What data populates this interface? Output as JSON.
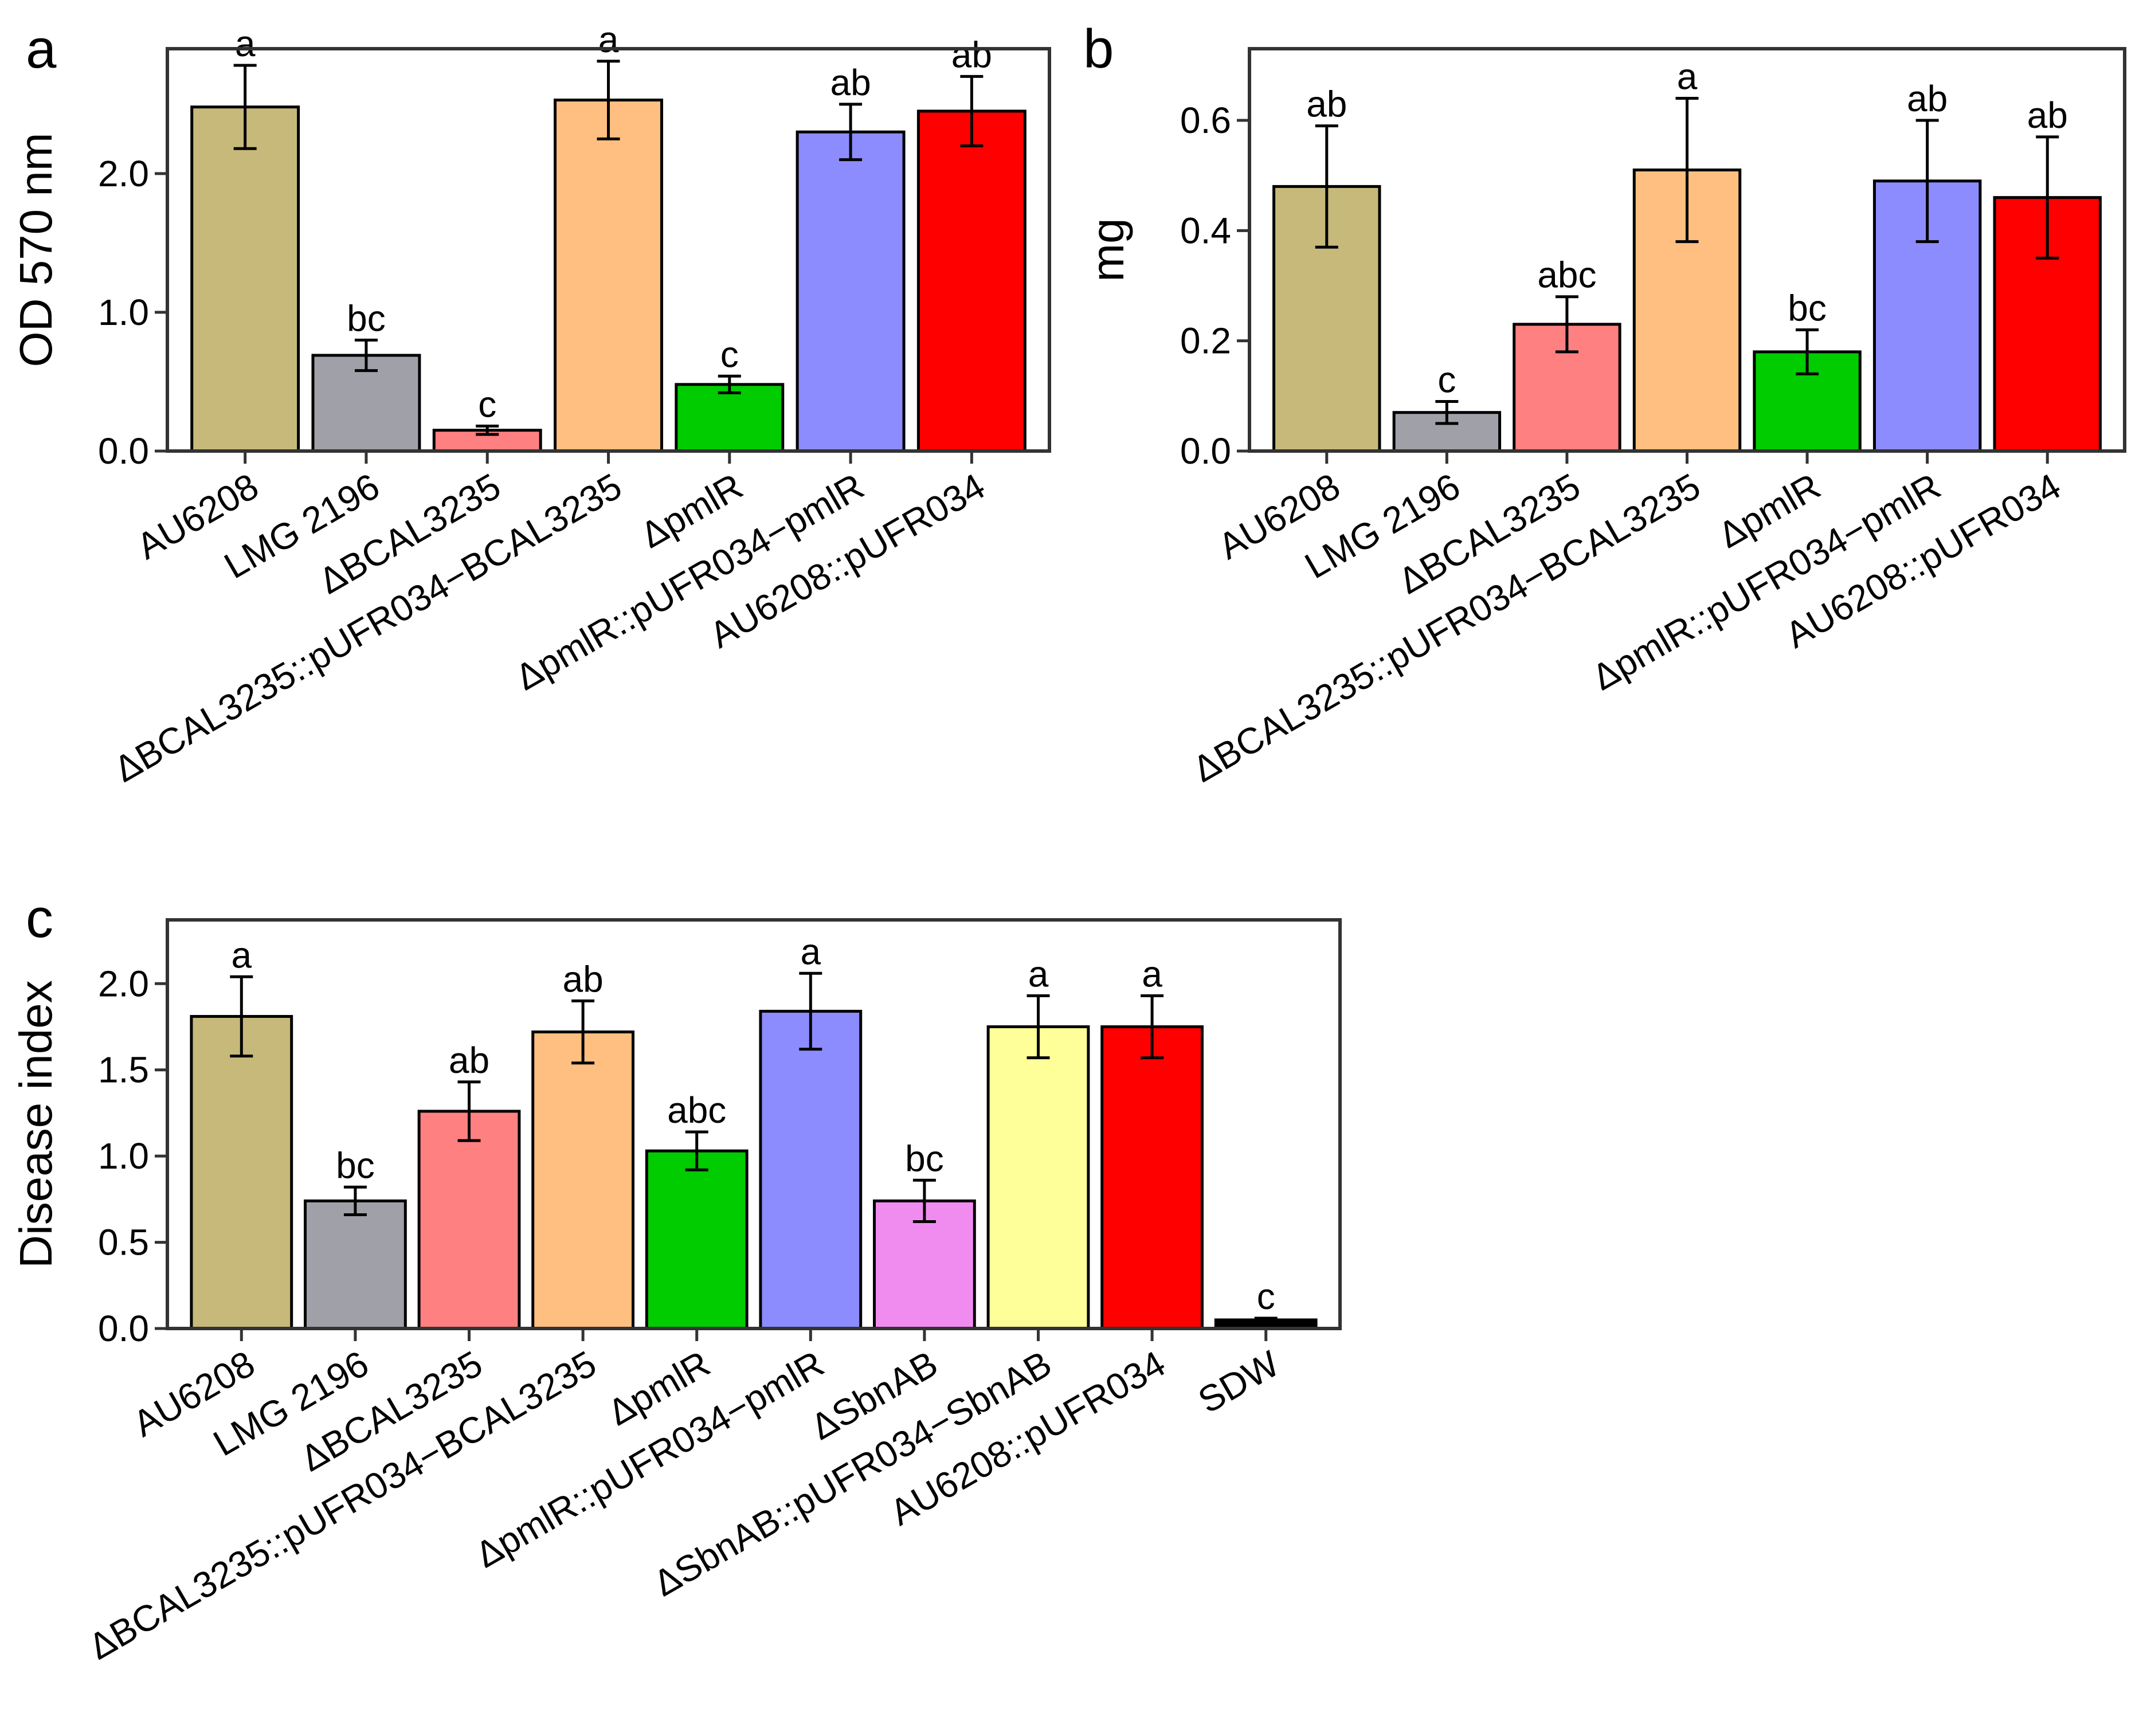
{
  "chart_data": [
    {
      "panel": "a",
      "type": "bar",
      "ylabel": "OD 570 nm",
      "xlabel": "",
      "ylim": [
        0,
        2.9
      ],
      "yticks": [
        0.0,
        1.0,
        2.0
      ],
      "ytick_labels": [
        "0.0",
        "1.0",
        "2.0"
      ],
      "categories": [
        "AU6208",
        "LMG 2196",
        "ΔBCAL3235",
        "ΔBCAL3235::pUFR034−BCAL3235",
        "ΔpmlR",
        "ΔpmlR::pUFR034−pmlR",
        "AU6208::pUFR034"
      ],
      "values": [
        2.48,
        0.69,
        0.15,
        2.53,
        0.48,
        2.3,
        2.45
      ],
      "errors": [
        0.3,
        0.11,
        0.03,
        0.28,
        0.06,
        0.2,
        0.25
      ],
      "significance": [
        "a",
        "bc",
        "c",
        "a",
        "c",
        "ab",
        "ab"
      ],
      "colors": [
        "#c6b97a",
        "#a0a0a8",
        "#ff8080",
        "#ffbf80",
        "#00cc00",
        "#8c8cff",
        "#ff0000"
      ],
      "grid": false
    },
    {
      "panel": "b",
      "type": "bar",
      "ylabel": "mg",
      "xlabel": "",
      "ylim": [
        0,
        0.73
      ],
      "yticks": [
        0.0,
        0.2,
        0.4,
        0.6
      ],
      "ytick_labels": [
        "0.0",
        "0.2",
        "0.4",
        "0.6"
      ],
      "categories": [
        "AU6208",
        "LMG 2196",
        "ΔBCAL3235",
        "ΔBCAL3235::pUFR034−BCAL3235",
        "ΔpmlR",
        "ΔpmlR::pUFR034−pmlR",
        "AU6208::pUFR034"
      ],
      "values": [
        0.48,
        0.07,
        0.23,
        0.51,
        0.18,
        0.49,
        0.46
      ],
      "errors": [
        0.11,
        0.02,
        0.05,
        0.13,
        0.04,
        0.11,
        0.11
      ],
      "significance": [
        "ab",
        "c",
        "abc",
        "a",
        "bc",
        "ab",
        "ab"
      ],
      "colors": [
        "#c6b97a",
        "#a0a0a8",
        "#ff8080",
        "#ffbf80",
        "#00cc00",
        "#8c8cff",
        "#ff0000"
      ],
      "grid": false
    },
    {
      "panel": "c",
      "type": "bar",
      "ylabel": "Disease index",
      "xlabel": "",
      "ylim": [
        0,
        2.37
      ],
      "yticks": [
        0.0,
        0.5,
        1.0,
        1.5,
        2.0
      ],
      "ytick_labels": [
        "0.0",
        "0.5",
        "1.0",
        "1.5",
        "2.0"
      ],
      "categories": [
        "AU6208",
        "LMG 2196",
        "ΔBCAL3235",
        "ΔBCAL3235::pUFR034−BCAL3235",
        "ΔpmlR",
        "ΔpmlR::pUFR034−pmlR",
        "ΔSbnAB",
        "ΔSbnAB::pUFR034−SbnAB",
        "AU6208::pUFR034",
        "SDW"
      ],
      "values": [
        1.81,
        0.74,
        1.26,
        1.72,
        1.03,
        1.84,
        0.74,
        1.75,
        1.75,
        0.05
      ],
      "errors": [
        0.23,
        0.08,
        0.17,
        0.18,
        0.11,
        0.22,
        0.12,
        0.18,
        0.18,
        0.01
      ],
      "significance": [
        "a",
        "bc",
        "ab",
        "ab",
        "abc",
        "a",
        "bc",
        "a",
        "a",
        "c"
      ],
      "colors": [
        "#c6b97a",
        "#a0a0a8",
        "#ff8080",
        "#ffbf80",
        "#00cc00",
        "#8c8cff",
        "#f08cf0",
        "#ffff99",
        "#ff0000",
        "#000000"
      ],
      "grid": false
    }
  ]
}
